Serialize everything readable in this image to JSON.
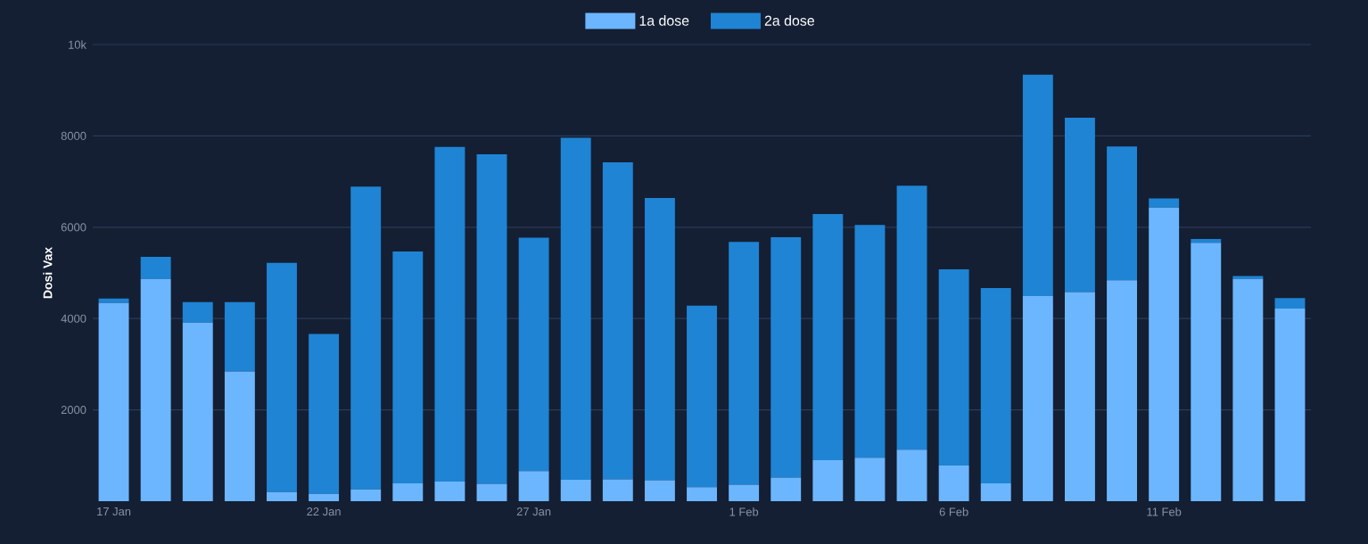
{
  "chart_data": {
    "type": "bar",
    "stacked": true,
    "ylabel": "Dosi Vax",
    "categories": [
      "17 Jan",
      null,
      null,
      null,
      null,
      "22 Jan",
      null,
      null,
      null,
      null,
      "27 Jan",
      null,
      null,
      null,
      null,
      "1 Feb",
      null,
      null,
      null,
      null,
      "6 Feb",
      null,
      null,
      null,
      null,
      "11 Feb",
      null,
      null,
      null
    ],
    "series": [
      {
        "name": "1a dose",
        "color": "#6cb6ff",
        "values": [
          4340,
          4870,
          3910,
          2840,
          200,
          160,
          260,
          390,
          430,
          380,
          660,
          470,
          480,
          460,
          310,
          360,
          520,
          900,
          950,
          1130,
          780,
          390,
          4490,
          4580,
          4840,
          6430,
          5660,
          4870,
          4220
        ]
      },
      {
        "name": "2a dose",
        "color": "#1f84d4",
        "values": [
          100,
          480,
          450,
          1520,
          5020,
          3500,
          6630,
          5080,
          7330,
          7220,
          5110,
          7490,
          6940,
          6180,
          3970,
          5320,
          5260,
          5390,
          5100,
          5780,
          4300,
          4280,
          4850,
          3820,
          2930,
          200,
          80,
          60,
          230
        ]
      }
    ],
    "ylim": [
      0,
      10000
    ],
    "yticks": [
      2000,
      4000,
      6000,
      8000,
      {
        "value": 10000,
        "label": "10k"
      }
    ],
    "grid": "y",
    "legend": "top"
  }
}
